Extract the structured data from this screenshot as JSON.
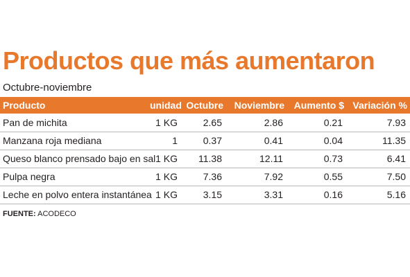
{
  "title": "Productos que más aumentaron",
  "subtitle": "Octubre-noviembre",
  "colors": {
    "accent": "#e8782c",
    "header_text": "#ffffff",
    "body_text": "#231f20",
    "divider": "#b5b5b5"
  },
  "table": {
    "headers": [
      "Producto",
      "unidad",
      "Octubre",
      "Noviembre",
      "Aumento $",
      "Variación %"
    ],
    "rows": [
      [
        "Pan de michita",
        "1 KG",
        "2.65",
        "2.86",
        "0.21",
        "7.93"
      ],
      [
        "Manzana roja mediana",
        "1",
        "0.37",
        "0.41",
        "0.04",
        "11.35"
      ],
      [
        "Queso blanco prensado bajo en sal",
        "1 KG",
        "11.38",
        "12.11",
        "0.73",
        "6.41"
      ],
      [
        "Pulpa negra",
        "1 KG",
        "7.36",
        "7.92",
        "0.55",
        "7.50"
      ],
      [
        "Leche en polvo entera instantánea",
        "1 KG",
        "3.15",
        "3.31",
        "0.16",
        "5.16"
      ]
    ]
  },
  "source": {
    "label": "FUENTE:",
    "value": "ACODECO"
  }
}
